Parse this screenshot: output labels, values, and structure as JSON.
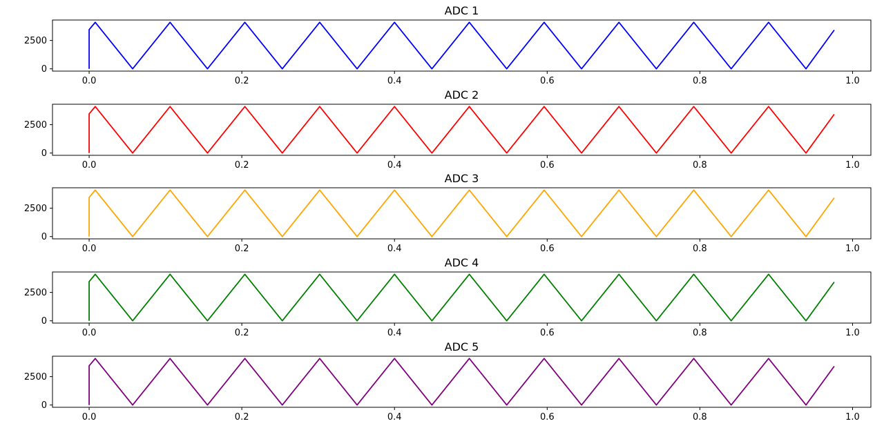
{
  "chart_data": [
    {
      "type": "line",
      "title": "ADC 1",
      "xlabel": "",
      "ylabel": "",
      "color": "#0000ff",
      "xlim": [
        -0.048,
        1.024
      ],
      "ylim": [
        -200,
        4300
      ],
      "xticks": [
        0.0,
        0.2,
        0.4,
        0.6,
        0.8,
        1.0
      ],
      "xtick_labels": [
        "0.0",
        "0.2",
        "0.4",
        "0.6",
        "0.8",
        "1.0"
      ],
      "yticks": [
        0,
        2500
      ],
      "ytick_labels": [
        "0",
        "2500"
      ],
      "grid": false,
      "series": [
        {
          "x": [
            0.0,
            0.0,
            0.008,
            0.057,
            0.106,
            0.155,
            0.204,
            0.253,
            0.302,
            0.351,
            0.4,
            0.449,
            0.498,
            0.547,
            0.596,
            0.645,
            0.694,
            0.743,
            0.792,
            0.841,
            0.89,
            0.939,
            0.976
          ],
          "y": [
            0,
            3450,
            4095,
            0,
            4095,
            0,
            4095,
            0,
            4095,
            0,
            4095,
            0,
            4095,
            0,
            4095,
            0,
            4095,
            0,
            4095,
            0,
            4095,
            0,
            3420
          ]
        }
      ]
    },
    {
      "type": "line",
      "title": "ADC 2",
      "xlabel": "",
      "ylabel": "",
      "color": "#ff0000",
      "xlim": [
        -0.048,
        1.024
      ],
      "ylim": [
        -200,
        4300
      ],
      "xticks": [
        0.0,
        0.2,
        0.4,
        0.6,
        0.8,
        1.0
      ],
      "xtick_labels": [
        "0.0",
        "0.2",
        "0.4",
        "0.6",
        "0.8",
        "1.0"
      ],
      "yticks": [
        0,
        2500
      ],
      "ytick_labels": [
        "0",
        "2500"
      ],
      "grid": false,
      "series": [
        {
          "x": [
            0.0,
            0.0,
            0.008,
            0.057,
            0.106,
            0.155,
            0.204,
            0.253,
            0.302,
            0.351,
            0.4,
            0.449,
            0.498,
            0.547,
            0.596,
            0.645,
            0.694,
            0.743,
            0.792,
            0.841,
            0.89,
            0.939,
            0.976
          ],
          "y": [
            0,
            3450,
            4095,
            0,
            4095,
            0,
            4095,
            0,
            4095,
            0,
            4095,
            0,
            4095,
            0,
            4095,
            0,
            4095,
            0,
            4095,
            0,
            4095,
            0,
            3420
          ]
        }
      ]
    },
    {
      "type": "line",
      "title": "ADC 3",
      "xlabel": "",
      "ylabel": "",
      "color": "#ffa500",
      "xlim": [
        -0.048,
        1.024
      ],
      "ylim": [
        -200,
        4300
      ],
      "xticks": [
        0.0,
        0.2,
        0.4,
        0.6,
        0.8,
        1.0
      ],
      "xtick_labels": [
        "0.0",
        "0.2",
        "0.4",
        "0.6",
        "0.8",
        "1.0"
      ],
      "yticks": [
        0,
        2500
      ],
      "ytick_labels": [
        "0",
        "2500"
      ],
      "grid": false,
      "series": [
        {
          "x": [
            0.0,
            0.0,
            0.008,
            0.057,
            0.106,
            0.155,
            0.204,
            0.253,
            0.302,
            0.351,
            0.4,
            0.449,
            0.498,
            0.547,
            0.596,
            0.645,
            0.694,
            0.743,
            0.792,
            0.841,
            0.89,
            0.939,
            0.976
          ],
          "y": [
            0,
            3450,
            4095,
            0,
            4095,
            0,
            4095,
            0,
            4095,
            0,
            4095,
            0,
            4095,
            0,
            4095,
            0,
            4095,
            0,
            4095,
            0,
            4095,
            0,
            3420
          ]
        }
      ]
    },
    {
      "type": "line",
      "title": "ADC 4",
      "xlabel": "",
      "ylabel": "",
      "color": "#008000",
      "xlim": [
        -0.048,
        1.024
      ],
      "ylim": [
        -200,
        4300
      ],
      "xticks": [
        0.0,
        0.2,
        0.4,
        0.6,
        0.8,
        1.0
      ],
      "xtick_labels": [
        "0.0",
        "0.2",
        "0.4",
        "0.6",
        "0.8",
        "1.0"
      ],
      "yticks": [
        0,
        2500
      ],
      "ytick_labels": [
        "0",
        "2500"
      ],
      "grid": false,
      "series": [
        {
          "x": [
            0.0,
            0.0,
            0.008,
            0.057,
            0.106,
            0.155,
            0.204,
            0.253,
            0.302,
            0.351,
            0.4,
            0.449,
            0.498,
            0.547,
            0.596,
            0.645,
            0.694,
            0.743,
            0.792,
            0.841,
            0.89,
            0.939,
            0.976
          ],
          "y": [
            0,
            3450,
            4095,
            0,
            4095,
            0,
            4095,
            0,
            4095,
            0,
            4095,
            0,
            4095,
            0,
            4095,
            0,
            4095,
            0,
            4095,
            0,
            4095,
            0,
            3420
          ]
        }
      ]
    },
    {
      "type": "line",
      "title": "ADC 5",
      "xlabel": "",
      "ylabel": "",
      "color": "#800080",
      "xlim": [
        -0.048,
        1.024
      ],
      "ylim": [
        -200,
        4300
      ],
      "xticks": [
        0.0,
        0.2,
        0.4,
        0.6,
        0.8,
        1.0
      ],
      "xtick_labels": [
        "0.0",
        "0.2",
        "0.4",
        "0.6",
        "0.8",
        "1.0"
      ],
      "yticks": [
        0,
        2500
      ],
      "ytick_labels": [
        "0",
        "2500"
      ],
      "grid": false,
      "series": [
        {
          "x": [
            0.0,
            0.0,
            0.008,
            0.057,
            0.106,
            0.155,
            0.204,
            0.253,
            0.302,
            0.351,
            0.4,
            0.449,
            0.498,
            0.547,
            0.596,
            0.645,
            0.694,
            0.743,
            0.792,
            0.841,
            0.89,
            0.939,
            0.976
          ],
          "y": [
            0,
            3450,
            4095,
            0,
            4095,
            0,
            4095,
            0,
            4095,
            0,
            4095,
            0,
            4095,
            0,
            4095,
            0,
            4095,
            0,
            4095,
            0,
            4095,
            0,
            3420
          ]
        }
      ]
    }
  ]
}
